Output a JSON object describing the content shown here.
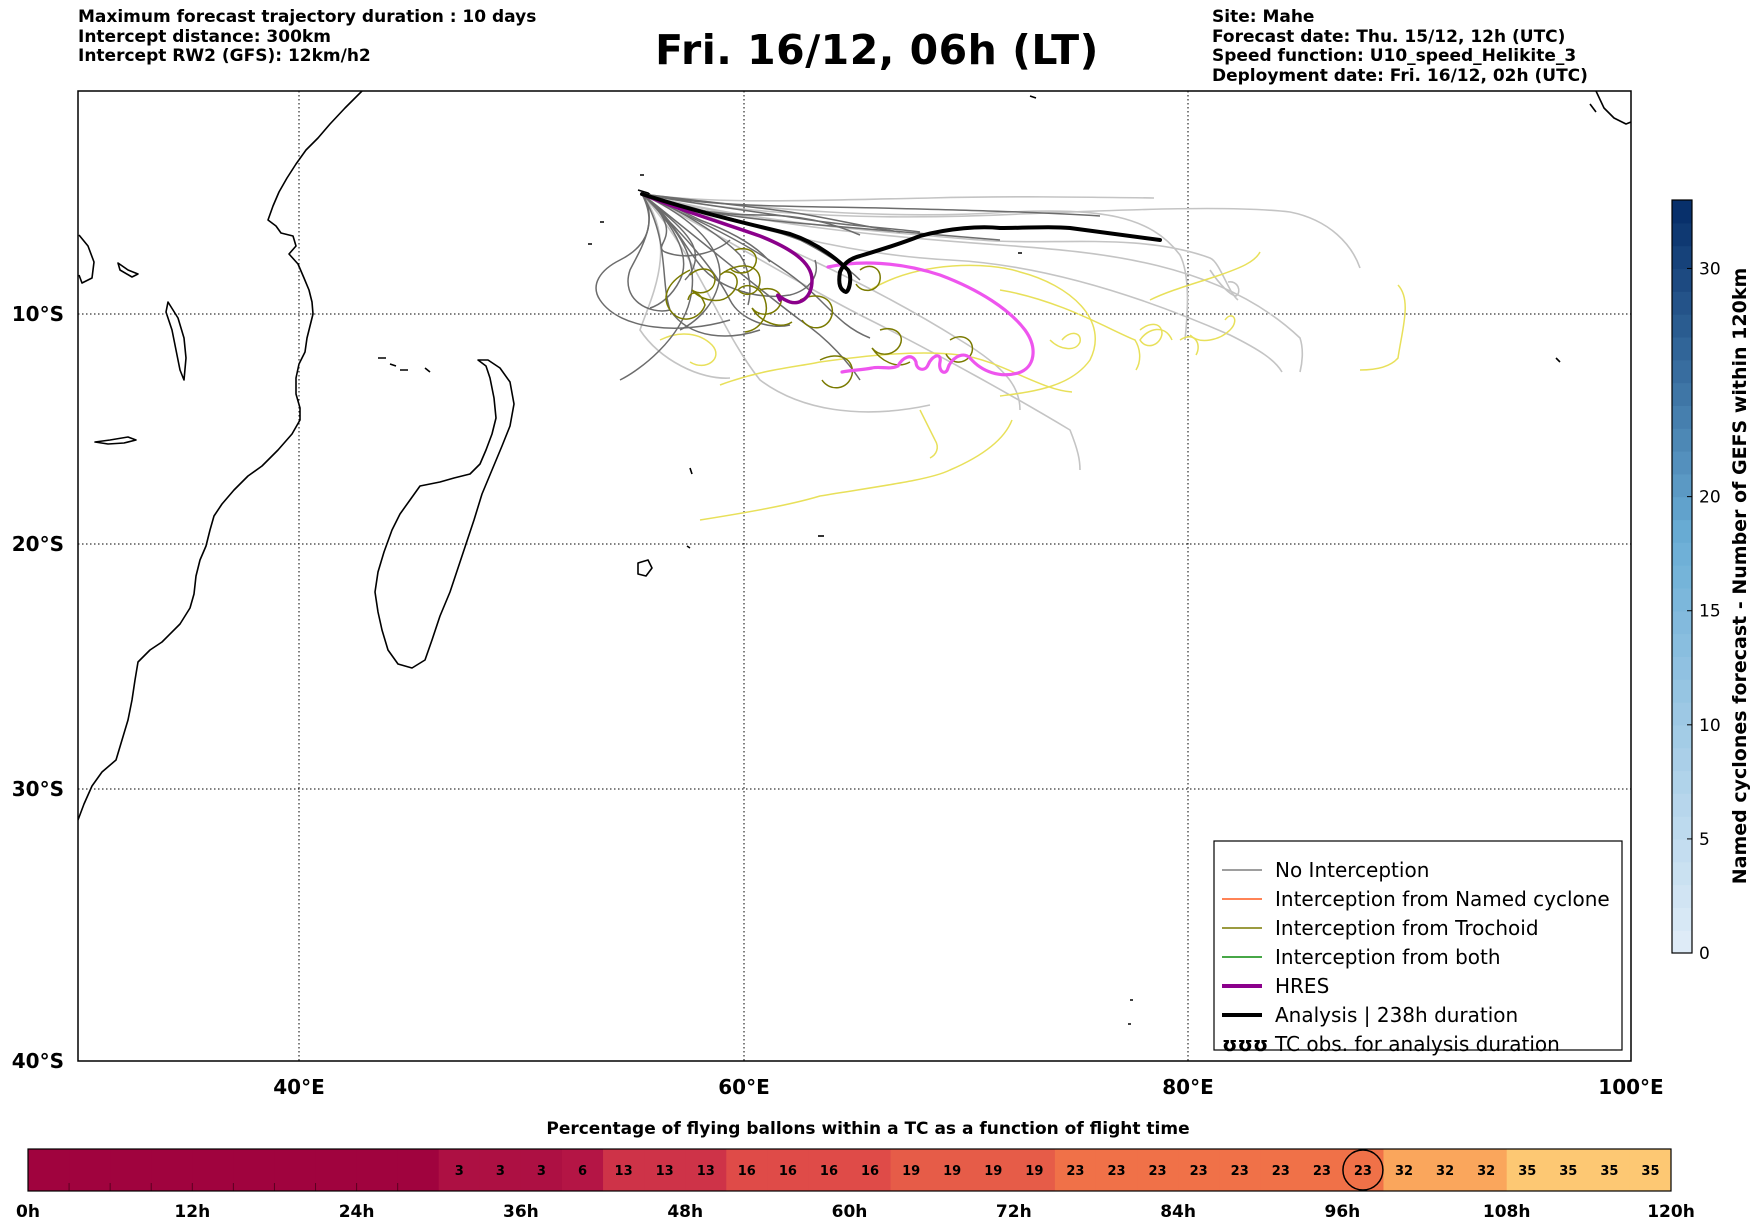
{
  "header": {
    "left": [
      "Maximum forecast trajectory duration : 10 days",
      "Intercept distance: 300km",
      "Intercept RW2 (GFS):  12km/h2"
    ],
    "title": "Fri. 16/12, 06h (LT)",
    "right": [
      "Site: Mahe",
      "Forecast date: Thu. 15/12, 12h (UTC)",
      "Speed function: U10_speed_Helikite_3",
      "Deployment date: Fri. 16/12, 02h (UTC)"
    ]
  },
  "map": {
    "lon_range": [
      30,
      100
    ],
    "lat_range": [
      -40,
      0.7
    ],
    "lon_ticks": [
      "40°E",
      "60°E",
      "80°E",
      "100°E"
    ],
    "lat_ticks": [
      "10°S",
      "20°S",
      "30°S",
      "40°S"
    ],
    "grid": "dotted",
    "coast_color": "#000000"
  },
  "legend": {
    "position": "bottom-right",
    "entries": [
      {
        "label": "No Interception",
        "color": "#7f7f7f",
        "style": "thin"
      },
      {
        "label": "Interception from Named cyclone",
        "color": "#ff5a1f",
        "style": "thin"
      },
      {
        "label": "Interception from Trochoid",
        "color": "#7a7a00",
        "style": "thin"
      },
      {
        "label": "Interception from both",
        "color": "#0a8a0a",
        "style": "thin"
      },
      {
        "label": "HRES",
        "color": "#8b008b",
        "style": "thick"
      },
      {
        "label": "Analysis | 238h duration",
        "color": "#000000",
        "style": "thick"
      },
      {
        "label": "TC obs. for analysis duration",
        "color": "#000000",
        "style": "symbol",
        "symbol": "ʊʊʊ"
      }
    ]
  },
  "colorbar": {
    "label": "Named cyclones forecast - Number of GEFS within 120km",
    "range": [
      0,
      33
    ],
    "ticks": [
      "0",
      "5",
      "10",
      "15",
      "20",
      "30"
    ],
    "tick_values": [
      0,
      5,
      10,
      15,
      20,
      30
    ]
  },
  "bottom_bar": {
    "title": "Percentage of flying ballons within a TC as a function of flight time",
    "x_ticks": [
      "0h",
      "12h",
      "24h",
      "36h",
      "48h",
      "60h",
      "72h",
      "84h",
      "96h",
      "108h",
      "120h"
    ],
    "cells": [
      null,
      null,
      null,
      null,
      null,
      null,
      null,
      null,
      null,
      null,
      3,
      3,
      3,
      6,
      13,
      13,
      13,
      16,
      16,
      16,
      16,
      19,
      19,
      19,
      19,
      23,
      23,
      23,
      23,
      23,
      23,
      23,
      23,
      32,
      32,
      32,
      35,
      35,
      35,
      35
    ],
    "highlight_cell": 32
  }
}
